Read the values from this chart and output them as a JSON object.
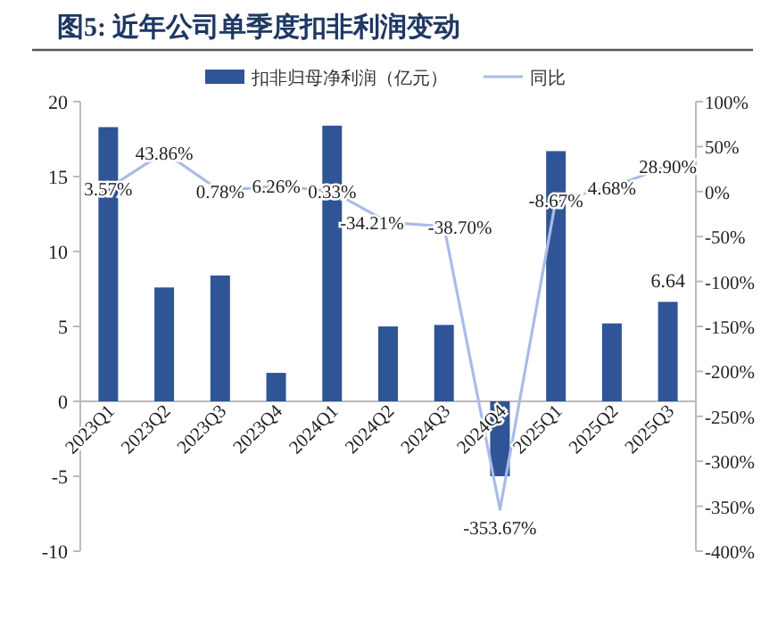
{
  "chart_data": {
    "type": "bar",
    "title": "图5: 近年公司单季度扣非利润变动",
    "categories": [
      "2023Q1",
      "2023Q2",
      "2023Q3",
      "2023Q4",
      "2024Q1",
      "2024Q2",
      "2024Q3",
      "2024Q4",
      "2025Q1",
      "2025Q2",
      "2025Q3"
    ],
    "series": [
      {
        "name": "扣非归母净利润（亿元）",
        "color": "#2f5597",
        "values": [
          18.3,
          7.6,
          8.4,
          1.9,
          18.4,
          5.0,
          5.1,
          -5.0,
          16.7,
          5.2,
          6.64
        ],
        "value_labels": [
          null,
          null,
          null,
          null,
          null,
          null,
          null,
          null,
          null,
          null,
          "6.64"
        ]
      },
      {
        "name": "同比",
        "type": "line",
        "axis": "y2",
        "color": "#a9bce6",
        "values": [
          3.57,
          43.86,
          0.78,
          6.26,
          0.33,
          -34.21,
          -38.7,
          -353.67,
          -8.67,
          4.68,
          28.9
        ],
        "value_labels": [
          "3.57%",
          "43.86%",
          "0.78%",
          "6.26%",
          "0.33%",
          "-34.21%",
          "-38.70%",
          "-353.67%",
          "-8.67%",
          "4.68%",
          "28.90%"
        ]
      }
    ],
    "ylim": [
      -10,
      20
    ],
    "yticks": [
      -10,
      -5,
      0,
      5,
      10,
      15,
      20
    ],
    "y2lim": [
      -400,
      100
    ],
    "y2ticks": [
      {
        "value": -400,
        "label": "-400%"
      },
      {
        "value": -350,
        "label": "-350%"
      },
      {
        "value": -300,
        "label": "-300%"
      },
      {
        "value": -250,
        "label": "-250%"
      },
      {
        "value": -200,
        "label": "-200%"
      },
      {
        "value": -150,
        "label": "-150%"
      },
      {
        "value": -100,
        "label": "-100%"
      },
      {
        "value": -50,
        "label": "-50%"
      },
      {
        "value": 0,
        "label": "0%"
      },
      {
        "value": 50,
        "label": "50%"
      },
      {
        "value": 100,
        "label": "100%"
      }
    ],
    "grid": false,
    "legend": "top",
    "marker": "none",
    "line_style": "solid"
  }
}
